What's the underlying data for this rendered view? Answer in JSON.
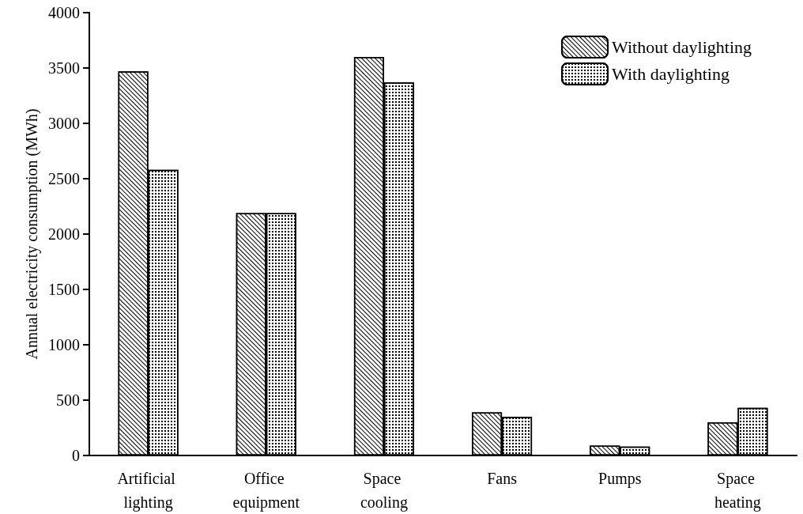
{
  "chart_data": {
    "type": "bar",
    "ylabel": "Annual electricity consumption (MWh)",
    "categories": [
      "Artificial lighting",
      "Office equipment",
      "Space cooling",
      "Fans",
      "Pumps",
      "Space heating"
    ],
    "series": [
      {
        "name": "Without daylighting",
        "color": "#ffffff",
        "values": [
          3470,
          2190,
          3600,
          390,
          90,
          300
        ]
      },
      {
        "name": "With daylighting",
        "color": "#ffffff",
        "values": [
          2580,
          2190,
          3370,
          350,
          80,
          430
        ]
      }
    ],
    "ylim": [
      0,
      4000
    ],
    "yticks": [
      0,
      500,
      1000,
      1500,
      2000,
      2500,
      3000,
      3500,
      4000
    ],
    "grid": false,
    "legend": "top right"
  }
}
